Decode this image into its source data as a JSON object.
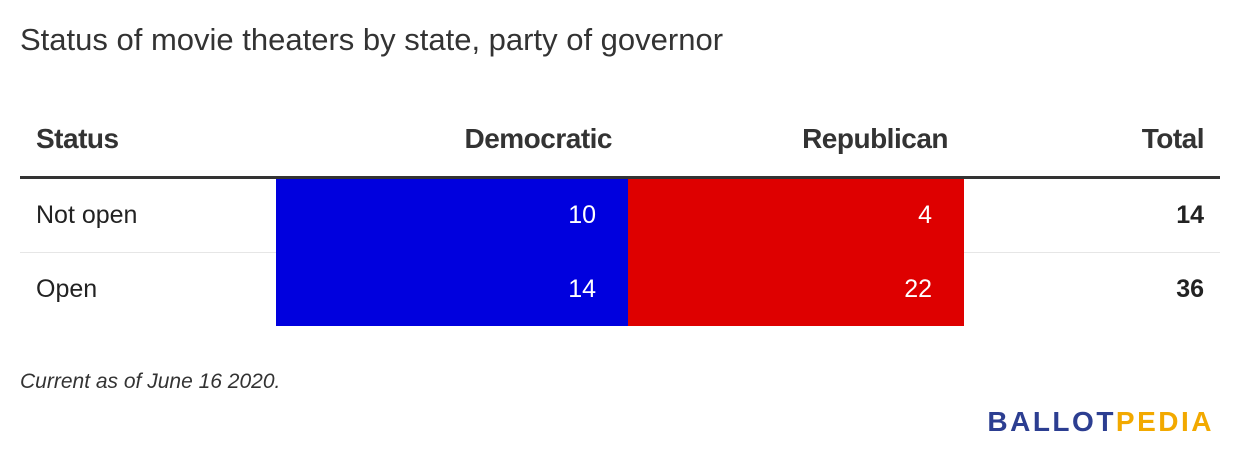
{
  "title": "Status of movie theaters by state, party of governor",
  "table": {
    "headers": {
      "status": "Status",
      "democratic": "Democratic",
      "republican": "Republican",
      "total": "Total"
    },
    "rows": [
      {
        "status": "Not open",
        "democratic": "10",
        "republican": "4",
        "total": "14"
      },
      {
        "status": "Open",
        "democratic": "14",
        "republican": "22",
        "total": "36"
      }
    ]
  },
  "chart_data": {
    "type": "table",
    "title": "Status of movie theaters by state, party of governor",
    "columns": [
      "Status",
      "Democratic",
      "Republican",
      "Total"
    ],
    "rows": [
      [
        "Not open",
        10,
        4,
        14
      ],
      [
        "Open",
        14,
        22,
        36
      ]
    ]
  },
  "note": "Current as of June 16 2020.",
  "logo": {
    "part1": "BALLOT",
    "part2": "PEDIA"
  },
  "colors": {
    "democratic": "#0000de",
    "republican": "#de0000",
    "logo_blue": "#2c3e91",
    "logo_gold": "#f2a900"
  }
}
